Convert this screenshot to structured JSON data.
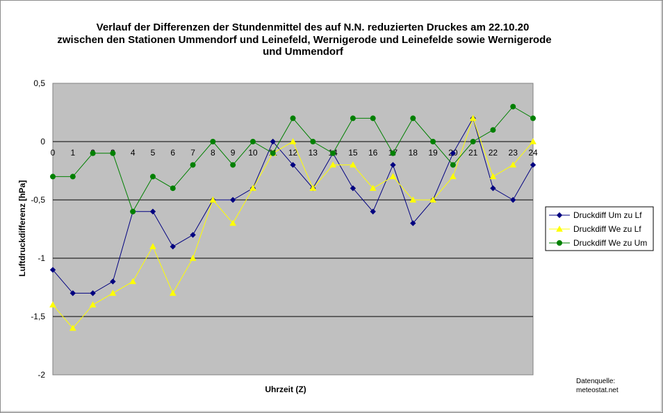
{
  "chart_data": {
    "type": "line",
    "title": [
      "Verlauf der Differenzen der Stundenmittel des auf N.N. reduzierten Druckes am 22.10.20",
      "zwischen den Stationen Ummendorf und Leinefeld, Wernigerode und Leinefelde sowie Wernigerode",
      "und Ummendorf"
    ],
    "xlabel": "Uhrzeit (Z)",
    "ylabel": "Luftdruckdifferenz [hPa]",
    "x": [
      0,
      1,
      2,
      3,
      4,
      5,
      6,
      7,
      8,
      9,
      10,
      11,
      12,
      13,
      14,
      15,
      16,
      17,
      18,
      19,
      20,
      21,
      22,
      23,
      24
    ],
    "y_ticks": [
      "0,5",
      "0",
      "-0,5",
      "-1",
      "-1,5",
      "-2"
    ],
    "y_tick_values": [
      0.5,
      0,
      -0.5,
      -1,
      -1.5,
      -2
    ],
    "ylim": [
      -2,
      0.5
    ],
    "xlim": [
      0,
      24
    ],
    "grid": "horizontal at -0,5, -1, -1,5",
    "legend_position": "right",
    "plot_background": "#c0c0c0",
    "series": [
      {
        "name": "Druckdiff Um zu Lf",
        "color": "#000080",
        "marker": "diamond",
        "values": [
          -1.1,
          -1.3,
          -1.3,
          -1.2,
          -0.6,
          -0.6,
          -0.9,
          -0.8,
          -0.5,
          -0.5,
          -0.4,
          0,
          -0.2,
          -0.4,
          -0.1,
          -0.4,
          -0.6,
          -0.2,
          -0.7,
          -0.5,
          -0.1,
          0.2,
          -0.4,
          -0.5,
          -0.2
        ]
      },
      {
        "name": "Druckdiff We zu Lf",
        "color": "#ffff00",
        "marker": "triangle",
        "values": [
          -1.4,
          -1.6,
          -1.4,
          -1.3,
          -1.2,
          -0.9,
          -1.3,
          -1.0,
          -0.5,
          -0.7,
          -0.4,
          -0.1,
          0,
          -0.4,
          -0.2,
          -0.2,
          -0.4,
          -0.3,
          -0.5,
          -0.5,
          -0.3,
          0.2,
          -0.3,
          -0.2,
          0
        ]
      },
      {
        "name": "Druckdiff We zu Um",
        "color": "#008000",
        "marker": "circle",
        "values": [
          -0.3,
          -0.3,
          -0.1,
          -0.1,
          -0.6,
          -0.3,
          -0.4,
          -0.2,
          0,
          -0.2,
          0,
          -0.1,
          0.2,
          0,
          -0.1,
          0.2,
          0.2,
          -0.1,
          0.2,
          0,
          -0.2,
          0,
          0.1,
          0.3,
          0.2
        ]
      }
    ],
    "source": [
      "Datenquelle:",
      "meteostat.net"
    ]
  }
}
